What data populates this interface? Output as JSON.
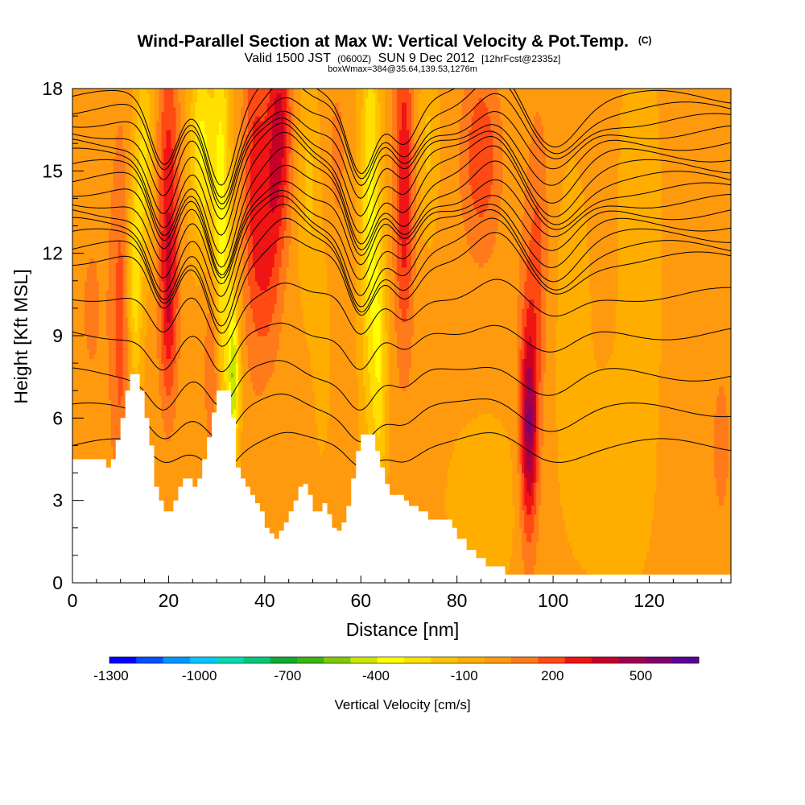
{
  "header": {
    "title": "Wind-Parallel Section at Max W: Vertical Velocity & Pot.Temp.",
    "copyright": "(C)",
    "valid_prefix": "Valid 1500 JST",
    "valid_utc": "(0600Z)",
    "valid_date": "SUN 9 Dec 2012",
    "forecast": "[12hrFcst@2335z]",
    "boxwmax": "boxWmax=384@35.64,139.53,1276m"
  },
  "colors": {
    "terrain": "#ffffff",
    "contour": "#000000",
    "background_fill": "#ff9a0e"
  },
  "chart_data": {
    "type": "contour-cross-section",
    "xlabel": "Distance [nm]",
    "ylabel": "Height [Kft MSL]",
    "xlim": [
      0,
      137
    ],
    "ylim": [
      0,
      18
    ],
    "x_ticks": [
      0,
      20,
      40,
      60,
      80,
      100,
      120
    ],
    "y_ticks": [
      0,
      3,
      6,
      9,
      12,
      15,
      18
    ],
    "grid": false,
    "fill_variable": "Vertical Velocity [cm/s]",
    "contour_variable": "Potential Temperature",
    "colorbar": {
      "label": "Vertical Velocity [cm/s]",
      "position": "bottom",
      "tick_labels": [
        "-1300",
        "-1000",
        "-700",
        "-400",
        "-100",
        "200",
        "500"
      ],
      "tick_values": [
        -1300,
        -1000,
        -700,
        -400,
        -100,
        200,
        500
      ],
      "colors": [
        "#0000ff",
        "#0050ff",
        "#0096ff",
        "#00c8ff",
        "#00dcb4",
        "#00c878",
        "#14aa32",
        "#3cb414",
        "#82c80a",
        "#c8e600",
        "#ffff00",
        "#ffe000",
        "#ffc400",
        "#ffae00",
        "#ff9a0e",
        "#ff7a1a",
        "#ff4a14",
        "#f01414",
        "#c80028",
        "#a00050",
        "#82006e",
        "#5a0096"
      ]
    },
    "terrain_profile": {
      "x": [
        0,
        6,
        7,
        8,
        9,
        10,
        11,
        12,
        13,
        14,
        15,
        16,
        17,
        18,
        19,
        20,
        21,
        22,
        23,
        24,
        25,
        26,
        27,
        28,
        29,
        30,
        31,
        32,
        33,
        34,
        35,
        36,
        37,
        38,
        39,
        40,
        41,
        42,
        43,
        44,
        45,
        46,
        47,
        48,
        49,
        50,
        51,
        52,
        53,
        54,
        55,
        56,
        57,
        58,
        59,
        60,
        61,
        62,
        63,
        64,
        65,
        66,
        67,
        68,
        69,
        70,
        71,
        72,
        73,
        74,
        75,
        76,
        77,
        78,
        79,
        80,
        81,
        82,
        83,
        84,
        85,
        86,
        88,
        90,
        92,
        94,
        96,
        100,
        110,
        120,
        130,
        137
      ],
      "height_kft": [
        4.5,
        4.5,
        4.2,
        4.5,
        5.2,
        6.0,
        7.0,
        7.6,
        7.6,
        7.0,
        6.0,
        5.0,
        3.5,
        3.0,
        2.6,
        2.6,
        3.0,
        3.5,
        3.8,
        3.8,
        3.5,
        3.8,
        4.5,
        5.3,
        6.2,
        7.0,
        7.0,
        7.0,
        6.0,
        4.2,
        3.8,
        3.5,
        3.2,
        2.9,
        2.6,
        2.0,
        1.8,
        1.6,
        1.9,
        2.2,
        2.6,
        3.0,
        3.5,
        3.6,
        3.2,
        2.6,
        2.6,
        2.9,
        2.5,
        2.0,
        1.9,
        2.2,
        2.8,
        3.8,
        4.8,
        5.4,
        5.4,
        5.4,
        4.8,
        4.2,
        3.6,
        3.2,
        3.2,
        3.2,
        3.0,
        2.8,
        2.8,
        2.6,
        2.6,
        2.3,
        2.3,
        2.3,
        2.3,
        2.3,
        2.0,
        1.6,
        1.6,
        1.2,
        1.2,
        0.9,
        0.9,
        0.6,
        0.6,
        0.3,
        0.3,
        0.3,
        0.3,
        0.3,
        0.3,
        0.3,
        0.3,
        0.3
      ]
    },
    "velocity_features": [
      {
        "x": 10,
        "x_width": 2,
        "y": 9.5,
        "y_width": 7,
        "value": 200
      },
      {
        "x": 13,
        "x_width": 1.5,
        "y": 11,
        "y_width": 4,
        "value": -300
      },
      {
        "x": 20,
        "x_width": 2.2,
        "y": 13.5,
        "y_width": 6,
        "value": 350
      },
      {
        "x": 20,
        "x_width": 1.5,
        "y": 9.5,
        "y_width": 3,
        "value": 150
      },
      {
        "x": 15,
        "x_width": 1.8,
        "y": 15.5,
        "y_width": 3.5,
        "value": -250
      },
      {
        "x": 27,
        "x_width": 2.5,
        "y": 16,
        "y_width": 3.5,
        "value": -350
      },
      {
        "x": 31,
        "x_width": 1.8,
        "y": 12.5,
        "y_width": 8,
        "value": -400
      },
      {
        "x": 33.5,
        "x_width": 1.2,
        "y": 7.5,
        "y_width": 3,
        "value": -500
      },
      {
        "x": 29.5,
        "x_width": 1.8,
        "y": 8,
        "y_width": 3.5,
        "value": 250
      },
      {
        "x": 38,
        "x_width": 2.5,
        "y": 14.5,
        "y_width": 6,
        "value": 300
      },
      {
        "x": 43,
        "x_width": 2.5,
        "y": 16.5,
        "y_width": 4,
        "value": 400
      },
      {
        "x": 41,
        "x_width": 2.5,
        "y": 12,
        "y_width": 4,
        "value": 200
      },
      {
        "x": 49,
        "x_width": 2,
        "y": 14.5,
        "y_width": 4,
        "value": -150
      },
      {
        "x": 52,
        "x_width": 2.5,
        "y": 9,
        "y_width": 6,
        "value": -50
      },
      {
        "x": 55,
        "x_width": 2.2,
        "y": 15.5,
        "y_width": 3.5,
        "value": 100
      },
      {
        "x": 62,
        "x_width": 2,
        "y": 13.5,
        "y_width": 8,
        "value": -350
      },
      {
        "x": 64,
        "x_width": 1.5,
        "y": 8,
        "y_width": 4.5,
        "value": -250
      },
      {
        "x": 69,
        "x_width": 2,
        "y": 14.5,
        "y_width": 6,
        "value": 350
      },
      {
        "x": 74,
        "x_width": 2,
        "y": 16,
        "y_width": 3,
        "value": -150
      },
      {
        "x": 85,
        "x_width": 4,
        "y": 15.5,
        "y_width": 3.5,
        "value": 250
      },
      {
        "x": 95,
        "x_width": 1.6,
        "y": 5.5,
        "y_width": 3.5,
        "value": 400
      },
      {
        "x": 95,
        "x_width": 2.4,
        "y": 7,
        "y_width": 6,
        "value": 200
      },
      {
        "x": 97,
        "x_width": 2.2,
        "y": 12.5,
        "y_width": 5,
        "value": 150
      },
      {
        "x": 104,
        "x_width": 4,
        "y": 9,
        "y_width": 7,
        "value": -70
      },
      {
        "x": 118,
        "x_width": 5,
        "y": 12,
        "y_width": 10,
        "value": -70
      },
      {
        "x": 112,
        "x_width": 6,
        "y": 3.5,
        "y_width": 3.5,
        "value": -90
      },
      {
        "x": 135,
        "x_width": 2,
        "y": 5,
        "y_width": 3,
        "value": 120
      },
      {
        "x": 86,
        "x_width": 8,
        "y": 3,
        "y_width": 3,
        "value": -90
      },
      {
        "x": 4,
        "x_width": 4,
        "y": 10,
        "y_width": 5,
        "value": 80
      }
    ],
    "theta_contours": {
      "lower_heights_kft": [
        5.0,
        6.3,
        7.6,
        9.1,
        10.5
      ],
      "upper_start_kft": 11.8,
      "upper_spacing_kft": 0.42,
      "upper_count": 15,
      "waves": [
        {
          "x": 31,
          "amplitude_kft": -3.0,
          "x_width": 4
        },
        {
          "x": 19,
          "amplitude_kft": -2.4,
          "x_width": 4
        },
        {
          "x": 44,
          "amplitude_kft": 1.0,
          "x_width": 5
        },
        {
          "x": 60,
          "amplitude_kft": -2.6,
          "x_width": 4
        },
        {
          "x": 69,
          "amplitude_kft": -1.5,
          "x_width": 4
        },
        {
          "x": 100,
          "amplitude_kft": -1.6,
          "x_width": 7
        },
        {
          "x": 88,
          "amplitude_kft": 1.0,
          "x_width": 6
        }
      ]
    }
  }
}
